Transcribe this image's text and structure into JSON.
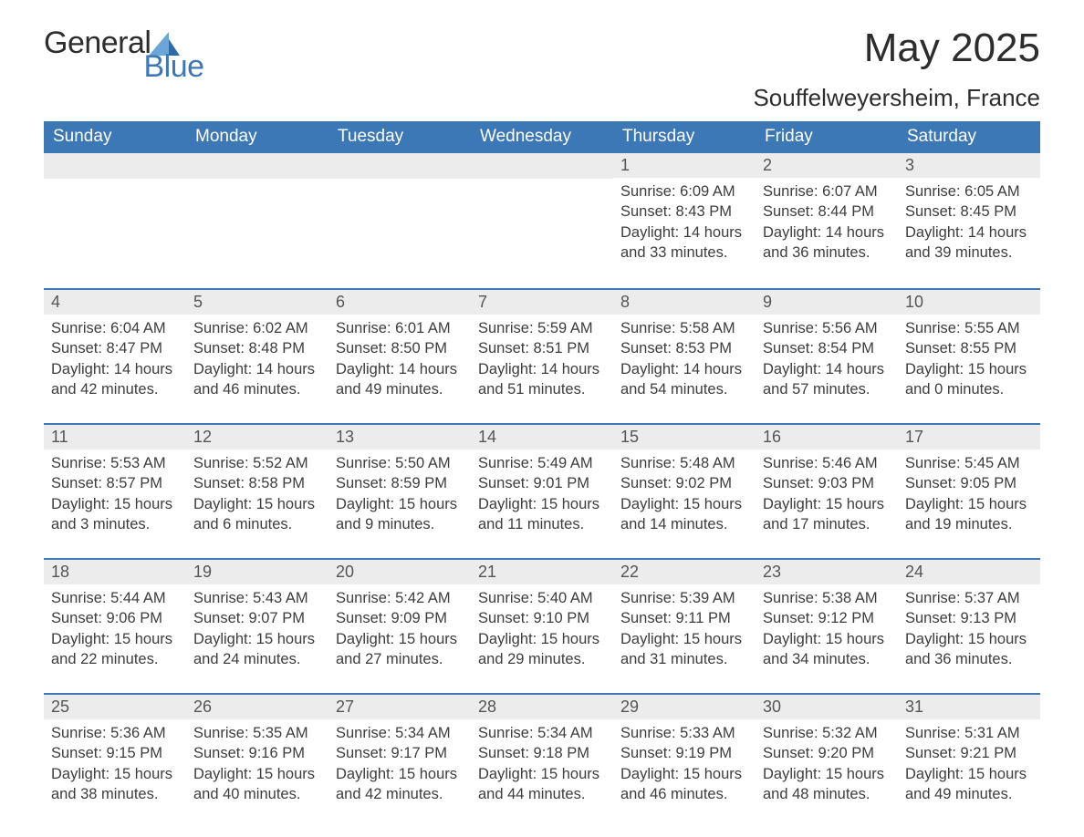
{
  "logo": {
    "text1": "General",
    "text2": "Blue"
  },
  "header": {
    "month_title": "May 2025",
    "location": "Souffelweyersheim, France"
  },
  "colors": {
    "header_bg": "#3b78b5",
    "header_text": "#ffffff",
    "daybar_bg": "#ececec",
    "daybar_border": "#3b78b5",
    "body_text": "#3d3d3d",
    "page_bg": "#ffffff",
    "logo_dark": "#2d2d2d",
    "logo_blue": "#3b78b5"
  },
  "fonts": {
    "title_size_pt": 33,
    "location_size_pt": 20,
    "dayheader_size_pt": 14,
    "body_size_pt": 12
  },
  "day_labels": [
    "Sunday",
    "Monday",
    "Tuesday",
    "Wednesday",
    "Thursday",
    "Friday",
    "Saturday"
  ],
  "weeks": [
    [
      null,
      null,
      null,
      null,
      {
        "n": "1",
        "sunrise": "6:09 AM",
        "sunset": "8:43 PM",
        "dlh": "14",
        "dlm": "33"
      },
      {
        "n": "2",
        "sunrise": "6:07 AM",
        "sunset": "8:44 PM",
        "dlh": "14",
        "dlm": "36"
      },
      {
        "n": "3",
        "sunrise": "6:05 AM",
        "sunset": "8:45 PM",
        "dlh": "14",
        "dlm": "39"
      }
    ],
    [
      {
        "n": "4",
        "sunrise": "6:04 AM",
        "sunset": "8:47 PM",
        "dlh": "14",
        "dlm": "42"
      },
      {
        "n": "5",
        "sunrise": "6:02 AM",
        "sunset": "8:48 PM",
        "dlh": "14",
        "dlm": "46"
      },
      {
        "n": "6",
        "sunrise": "6:01 AM",
        "sunset": "8:50 PM",
        "dlh": "14",
        "dlm": "49"
      },
      {
        "n": "7",
        "sunrise": "5:59 AM",
        "sunset": "8:51 PM",
        "dlh": "14",
        "dlm": "51"
      },
      {
        "n": "8",
        "sunrise": "5:58 AM",
        "sunset": "8:53 PM",
        "dlh": "14",
        "dlm": "54"
      },
      {
        "n": "9",
        "sunrise": "5:56 AM",
        "sunset": "8:54 PM",
        "dlh": "14",
        "dlm": "57"
      },
      {
        "n": "10",
        "sunrise": "5:55 AM",
        "sunset": "8:55 PM",
        "dlh": "15",
        "dlm": "0"
      }
    ],
    [
      {
        "n": "11",
        "sunrise": "5:53 AM",
        "sunset": "8:57 PM",
        "dlh": "15",
        "dlm": "3"
      },
      {
        "n": "12",
        "sunrise": "5:52 AM",
        "sunset": "8:58 PM",
        "dlh": "15",
        "dlm": "6"
      },
      {
        "n": "13",
        "sunrise": "5:50 AM",
        "sunset": "8:59 PM",
        "dlh": "15",
        "dlm": "9"
      },
      {
        "n": "14",
        "sunrise": "5:49 AM",
        "sunset": "9:01 PM",
        "dlh": "15",
        "dlm": "11"
      },
      {
        "n": "15",
        "sunrise": "5:48 AM",
        "sunset": "9:02 PM",
        "dlh": "15",
        "dlm": "14"
      },
      {
        "n": "16",
        "sunrise": "5:46 AM",
        "sunset": "9:03 PM",
        "dlh": "15",
        "dlm": "17"
      },
      {
        "n": "17",
        "sunrise": "5:45 AM",
        "sunset": "9:05 PM",
        "dlh": "15",
        "dlm": "19"
      }
    ],
    [
      {
        "n": "18",
        "sunrise": "5:44 AM",
        "sunset": "9:06 PM",
        "dlh": "15",
        "dlm": "22"
      },
      {
        "n": "19",
        "sunrise": "5:43 AM",
        "sunset": "9:07 PM",
        "dlh": "15",
        "dlm": "24"
      },
      {
        "n": "20",
        "sunrise": "5:42 AM",
        "sunset": "9:09 PM",
        "dlh": "15",
        "dlm": "27"
      },
      {
        "n": "21",
        "sunrise": "5:40 AM",
        "sunset": "9:10 PM",
        "dlh": "15",
        "dlm": "29"
      },
      {
        "n": "22",
        "sunrise": "5:39 AM",
        "sunset": "9:11 PM",
        "dlh": "15",
        "dlm": "31"
      },
      {
        "n": "23",
        "sunrise": "5:38 AM",
        "sunset": "9:12 PM",
        "dlh": "15",
        "dlm": "34"
      },
      {
        "n": "24",
        "sunrise": "5:37 AM",
        "sunset": "9:13 PM",
        "dlh": "15",
        "dlm": "36"
      }
    ],
    [
      {
        "n": "25",
        "sunrise": "5:36 AM",
        "sunset": "9:15 PM",
        "dlh": "15",
        "dlm": "38"
      },
      {
        "n": "26",
        "sunrise": "5:35 AM",
        "sunset": "9:16 PM",
        "dlh": "15",
        "dlm": "40"
      },
      {
        "n": "27",
        "sunrise": "5:34 AM",
        "sunset": "9:17 PM",
        "dlh": "15",
        "dlm": "42"
      },
      {
        "n": "28",
        "sunrise": "5:34 AM",
        "sunset": "9:18 PM",
        "dlh": "15",
        "dlm": "44"
      },
      {
        "n": "29",
        "sunrise": "5:33 AM",
        "sunset": "9:19 PM",
        "dlh": "15",
        "dlm": "46"
      },
      {
        "n": "30",
        "sunrise": "5:32 AM",
        "sunset": "9:20 PM",
        "dlh": "15",
        "dlm": "48"
      },
      {
        "n": "31",
        "sunrise": "5:31 AM",
        "sunset": "9:21 PM",
        "dlh": "15",
        "dlm": "49"
      }
    ]
  ],
  "labels": {
    "sunrise_prefix": "Sunrise: ",
    "sunset_prefix": "Sunset: ",
    "daylight_prefix": "Daylight: ",
    "hours_word": " hours",
    "and_word": "and ",
    "minutes_word": " minutes."
  }
}
